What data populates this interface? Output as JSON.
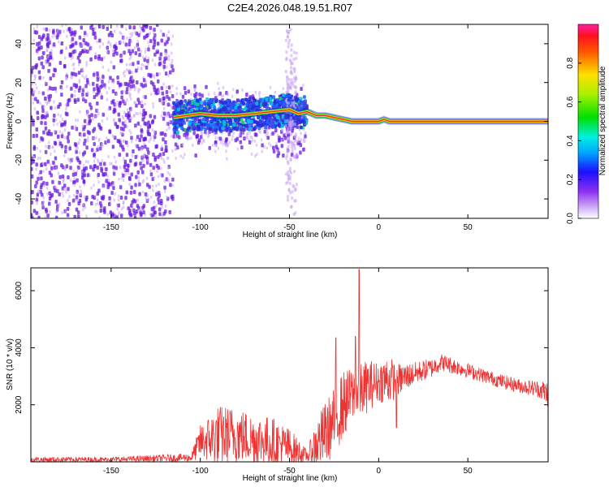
{
  "title": "C2E4.2026.048.19.51.R07",
  "colors": {
    "snr_line": "#ee3333",
    "ridge_line": "#ff2020",
    "ridge_inner": "#ffdd00",
    "ridge_outer": "#22cc44",
    "scatter_primary": "#6a1bdc",
    "scatter_light": "#c9a6f5"
  },
  "chart_data": [
    {
      "type": "heatmap",
      "name": "spectrogram",
      "xlabel": "Height of straight line (km)",
      "ylabel": "Frequency (Hz)",
      "xlim": [
        -195,
        95
      ],
      "ylim": [
        -50,
        50
      ],
      "x_ticks": [
        -150,
        -100,
        -50,
        0,
        50
      ],
      "x_tick_labels": [
        "-150",
        "-100",
        "-50",
        "0",
        "50"
      ],
      "y_ticks": [
        -40,
        -20,
        0,
        20,
        40
      ],
      "y_tick_labels": [
        "-40",
        "-20",
        "0",
        "20",
        "40"
      ],
      "ridge": {
        "x": [
          -115,
          -100,
          -90,
          -80,
          -70,
          -60,
          -50,
          -45,
          -40,
          -35,
          -30,
          -25,
          -20,
          -15,
          -5,
          0,
          3,
          6,
          10,
          30,
          50,
          70,
          95
        ],
        "y": [
          2,
          4,
          3,
          3,
          4,
          5,
          6,
          4,
          5,
          3,
          3,
          2,
          1,
          0,
          0,
          0,
          1,
          0,
          0,
          0,
          0,
          0,
          0
        ]
      },
      "noise_regions": [
        {
          "x_range": [
            -195,
            -115
          ],
          "y_range": [
            -50,
            50
          ],
          "density": "high"
        },
        {
          "x_range": [
            -115,
            -40
          ],
          "y_range": [
            -20,
            20
          ],
          "density": "medium"
        }
      ],
      "colorbar": {
        "label": "Normalized spectral amplitude",
        "range": [
          0,
          1
        ],
        "ticks": [
          0.0,
          0.2,
          0.4,
          0.6,
          0.8
        ],
        "tick_labels": [
          "0.0",
          "0.2",
          "0.4",
          "0.6",
          "0.8"
        ]
      }
    },
    {
      "type": "line",
      "name": "snr",
      "xlabel": "Height of straight line (km)",
      "ylabel": "SNR (10 * v/v)",
      "xlim": [
        -195,
        95
      ],
      "ylim": [
        0,
        6800
      ],
      "x_ticks": [
        -150,
        -100,
        -50,
        0,
        50
      ],
      "x_tick_labels": [
        "-150",
        "-100",
        "-50",
        "0",
        "50"
      ],
      "y_ticks": [
        2000,
        4000,
        6000
      ],
      "y_tick_labels": [
        "2000",
        "4000",
        "6000"
      ],
      "envelope": {
        "x": [
          -195,
          -150,
          -105,
          -100,
          -90,
          -80,
          -70,
          -60,
          -50,
          -40,
          -35,
          -30,
          -25,
          -20,
          -15,
          -10,
          -5,
          0,
          5,
          10,
          20,
          30,
          35,
          40,
          50,
          60,
          70,
          80,
          90,
          95
        ],
        "base": [
          80,
          80,
          150,
          700,
          900,
          950,
          800,
          700,
          500,
          200,
          600,
          1000,
          1400,
          2000,
          2300,
          2500,
          2700,
          2800,
          2900,
          2850,
          3100,
          3300,
          3500,
          3400,
          3200,
          3000,
          2800,
          2650,
          2550,
          2400
        ],
        "amp": [
          100,
          90,
          150,
          600,
          1100,
          1000,
          900,
          900,
          700,
          200,
          900,
          1100,
          1200,
          1200,
          1000,
          1000,
          900,
          700,
          900,
          600,
          400,
          350,
          300,
          300,
          250,
          250,
          250,
          250,
          300,
          500
        ]
      },
      "spikes": [
        {
          "x": -11,
          "y": 6750
        },
        {
          "x": -13,
          "y": 4400
        },
        {
          "x": -24,
          "y": 4350
        },
        {
          "x": 10,
          "y": 1200
        }
      ]
    }
  ]
}
